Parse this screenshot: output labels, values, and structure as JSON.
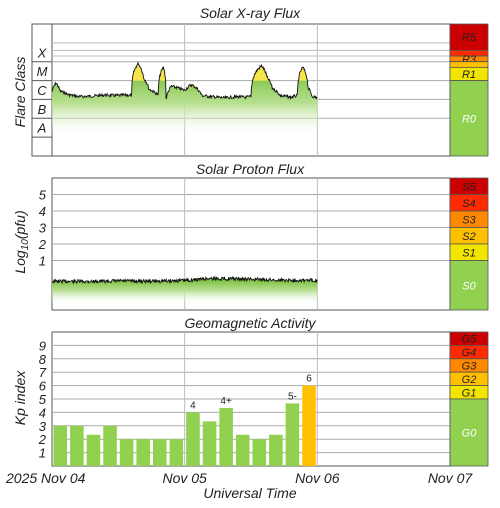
{
  "chart_data": [
    {
      "type": "area",
      "title": "Solar X-ray Flux",
      "ylabel": "Flare Class",
      "y_scale": "log",
      "ylim": [
        1e-09,
        0.01
      ],
      "y_tick_labels": [
        "A",
        "B",
        "C",
        "M",
        "X"
      ],
      "scale_labels": [
        "R5",
        "R4",
        "R3",
        "R2",
        "R1",
        "R0"
      ],
      "x_range_days": [
        0,
        3
      ],
      "series_points": [
        [
          0.0,
          2.5e-06
        ],
        [
          0.03,
          7.5e-06
        ],
        [
          0.06,
          2.8e-06
        ],
        [
          0.12,
          1.8e-06
        ],
        [
          0.2,
          1.4e-06
        ],
        [
          0.3,
          1.5e-06
        ],
        [
          0.4,
          1.7e-06
        ],
        [
          0.48,
          1.6e-06
        ],
        [
          0.56,
          1.7e-06
        ],
        [
          0.6,
          1.6e-06
        ],
        [
          0.65,
          8e-05
        ],
        [
          0.69,
          1.4e-05
        ],
        [
          0.73,
          3.5e-06
        ],
        [
          0.8,
          1.7e-06
        ],
        [
          0.84,
          5e-05
        ],
        [
          0.86,
          1e-06
        ],
        [
          0.9,
          5e-06
        ],
        [
          1.0,
          3e-06
        ],
        [
          1.05,
          6e-06
        ],
        [
          1.08,
          4.5e-06
        ],
        [
          1.13,
          1.6e-06
        ],
        [
          1.2,
          1.4e-06
        ],
        [
          1.3,
          1.2e-06
        ],
        [
          1.4,
          1.4e-06
        ],
        [
          1.45,
          1.3e-06
        ],
        [
          1.5,
          1.4e-06
        ],
        [
          1.58,
          6e-05
        ],
        [
          1.62,
          1.5e-05
        ],
        [
          1.66,
          4e-06
        ],
        [
          1.72,
          1.6e-06
        ],
        [
          1.8,
          1.3e-06
        ],
        [
          1.85,
          1.6e-06
        ],
        [
          1.89,
          5e-05
        ],
        [
          1.93,
          4e-06
        ],
        [
          1.96,
          1.5e-06
        ],
        [
          2.0,
          1.2e-06
        ]
      ]
    },
    {
      "type": "area",
      "title": "Solar Proton Flux",
      "ylabel": "Log10(pfu)",
      "ylim": [
        -2,
        6
      ],
      "y_ticks": [
        1,
        2,
        3,
        4,
        5
      ],
      "scale_labels": [
        "S5",
        "S4",
        "S3",
        "S2",
        "S1",
        "S0"
      ],
      "x_range_days": [
        0,
        3
      ],
      "series_points": [
        [
          0.0,
          -0.26
        ],
        [
          0.25,
          -0.27
        ],
        [
          0.5,
          -0.24
        ],
        [
          0.75,
          -0.25
        ],
        [
          1.0,
          -0.21
        ],
        [
          1.1,
          -0.15
        ],
        [
          1.2,
          -0.08
        ],
        [
          1.35,
          -0.11
        ],
        [
          1.5,
          -0.14
        ],
        [
          1.75,
          -0.19
        ],
        [
          2.0,
          -0.2
        ]
      ]
    },
    {
      "type": "bar",
      "title": "Geomagnetic Activity",
      "ylabel": "Kp index",
      "xlabel": "Universal Time",
      "ylim": [
        0,
        10
      ],
      "y_ticks": [
        1,
        2,
        3,
        4,
        5,
        6,
        7,
        8,
        9
      ],
      "scale_labels": [
        "G5",
        "G4",
        "G3",
        "G2",
        "G1",
        "G0"
      ],
      "x_tick_labels": [
        "2025 Nov 04",
        "Nov 05",
        "Nov 06",
        "Nov 07"
      ],
      "bar_interval_hours": 3,
      "values": [
        3.0,
        3.0,
        2.33,
        3.0,
        2.0,
        2.0,
        2.0,
        2.0,
        4.0,
        3.33,
        4.33,
        2.33,
        2.0,
        2.33,
        4.67,
        6.0
      ],
      "bar_labels": [
        "",
        "",
        "",
        "",
        "",
        "",
        "",
        "",
        "4",
        "",
        "4+",
        "",
        "",
        "",
        "5-",
        "6"
      ],
      "colors": {
        "green": "#92d050",
        "yellow": "#ffc000"
      }
    }
  ]
}
